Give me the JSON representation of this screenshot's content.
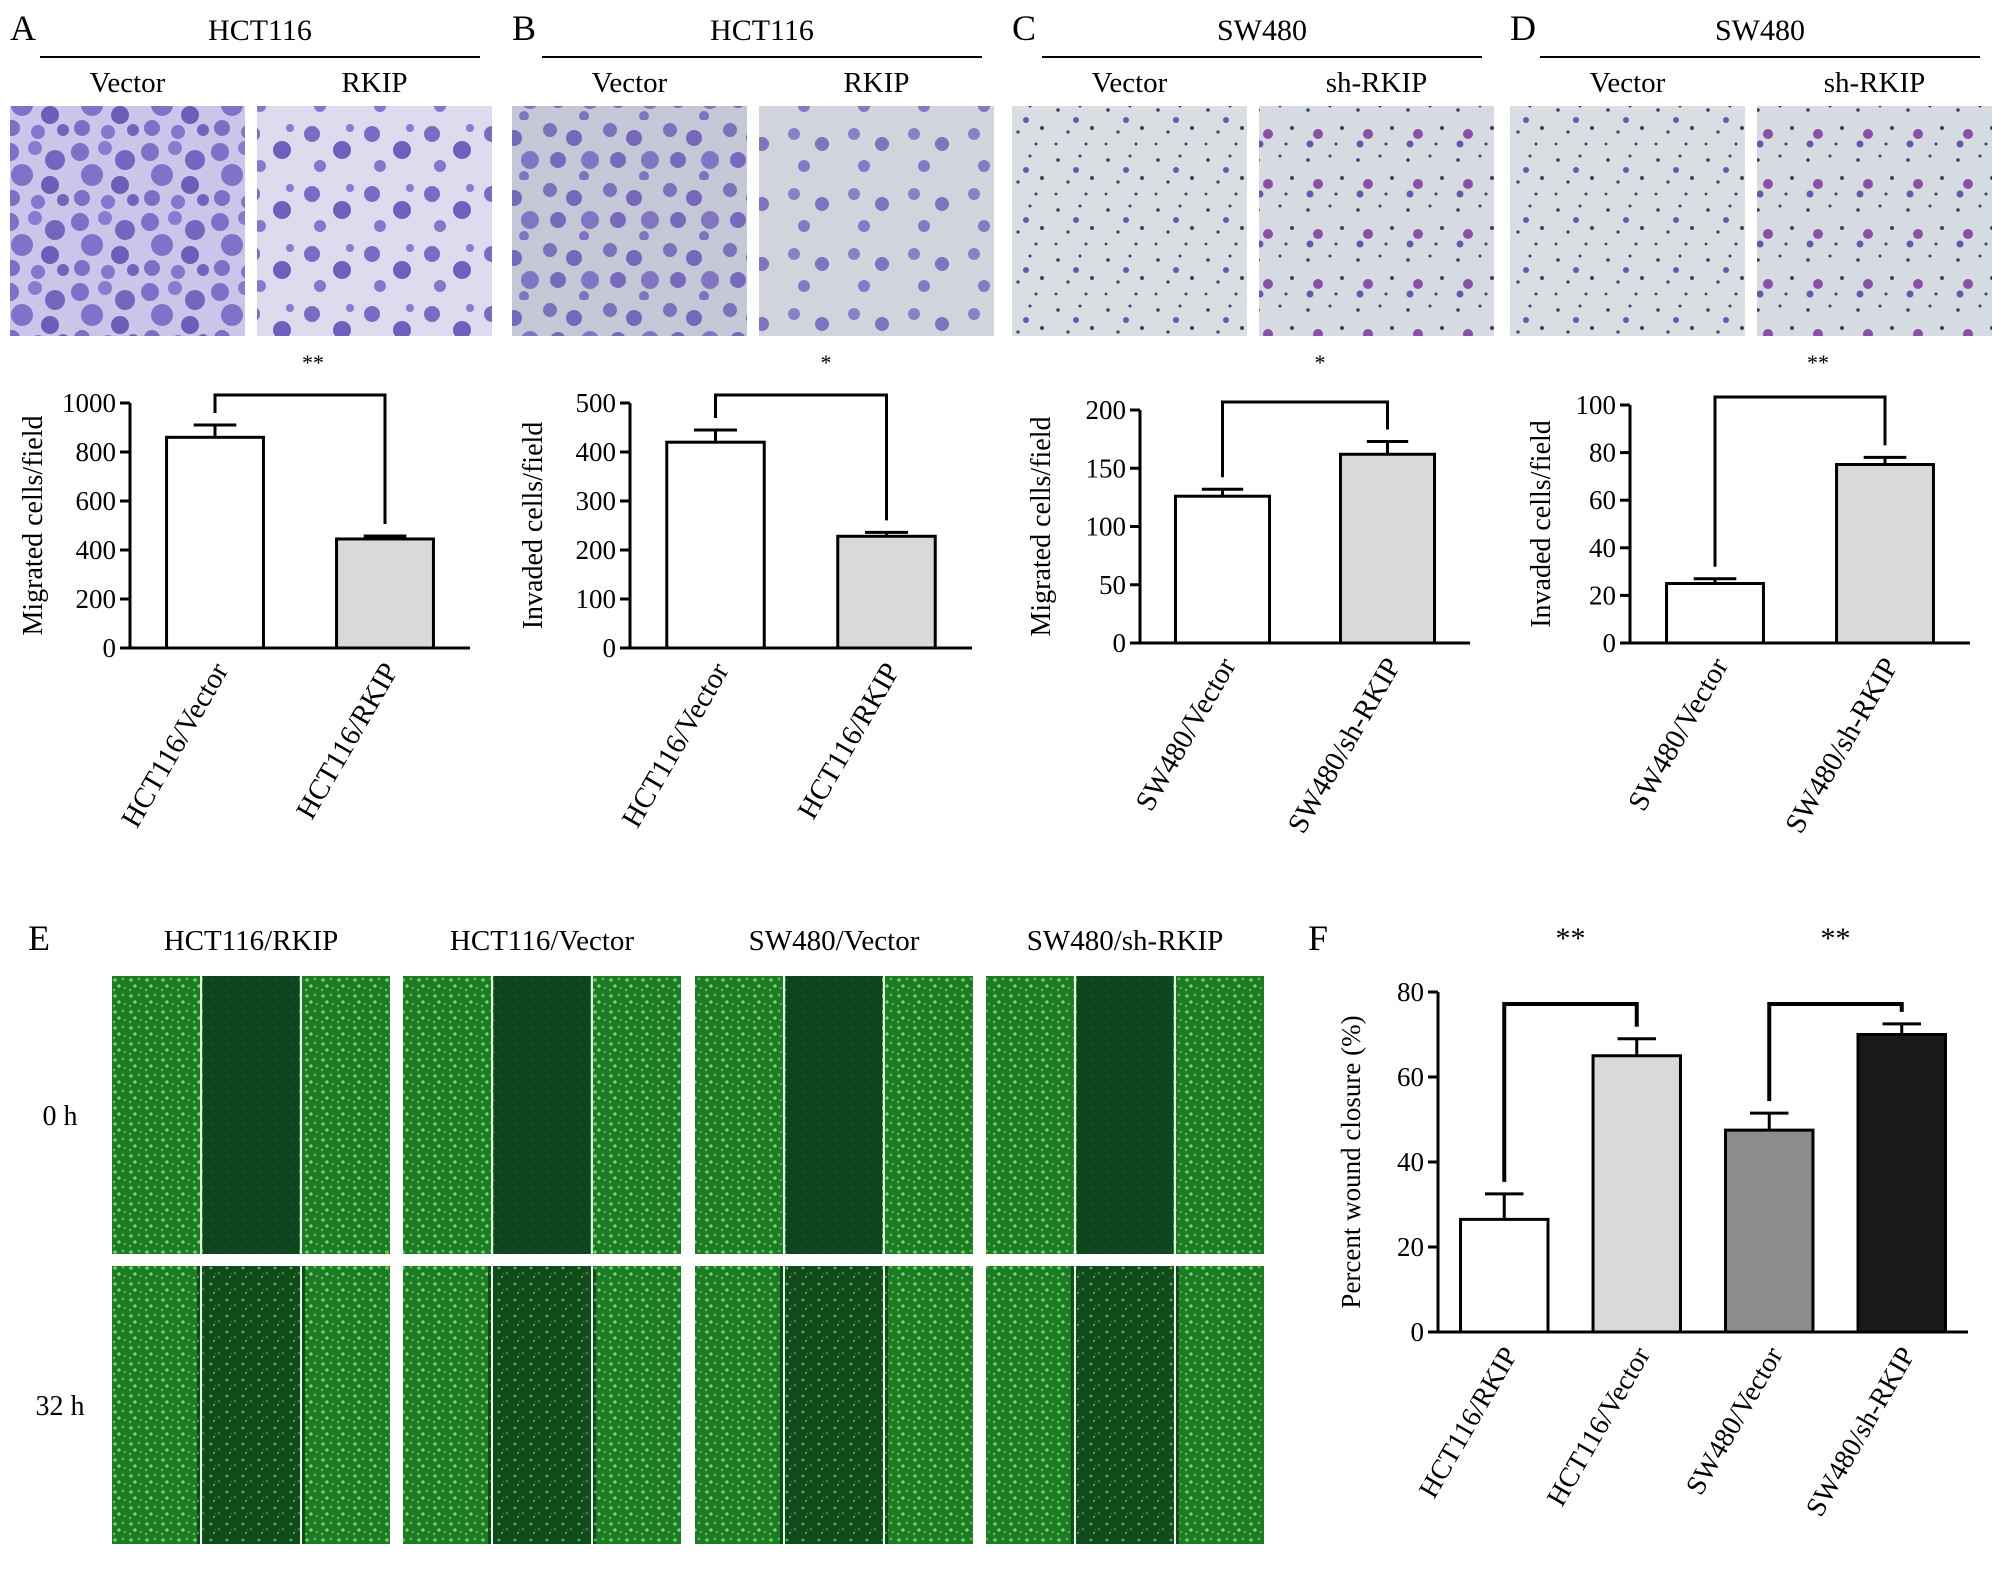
{
  "panels": [
    {
      "letter": "A",
      "cell_line": "HCT116",
      "image_labels": [
        "Vector",
        "RKIP"
      ],
      "significance": "**"
    },
    {
      "letter": "B",
      "cell_line": "HCT116",
      "image_labels": [
        "Vector",
        "RKIP"
      ],
      "significance": "*"
    },
    {
      "letter": "C",
      "cell_line": "SW480",
      "image_labels": [
        "Vector",
        "sh-RKIP"
      ],
      "significance": "*"
    },
    {
      "letter": "D",
      "cell_line": "SW480",
      "image_labels": [
        "Vector",
        "sh-RKIP"
      ],
      "significance": "**"
    }
  ],
  "panel_e": {
    "letter": "E",
    "column_labels": [
      "HCT116/RKIP",
      "HCT116/Vector",
      "SW480/Vector",
      "SW480/sh-RKIP"
    ],
    "row_labels": [
      "0 h",
      "32 h"
    ]
  },
  "panel_f": {
    "letter": "F"
  },
  "colors": {
    "bar_white": "#ffffff",
    "bar_lightgray": "#d9d9d9",
    "bar_midgray": "#8c8c8c",
    "bar_black": "#1a1a1a",
    "crystal_violet_bg": "#d7dde3",
    "crystal_violet_cells": "#6b5bb8",
    "gfp_green": "#2fa52f"
  },
  "chart_data": [
    {
      "panel": "A",
      "type": "bar",
      "categories": [
        "HCT116/Vector",
        "HCT116/RKIP"
      ],
      "values": [
        860,
        445
      ],
      "errors": [
        50,
        12
      ],
      "ylabel": "Migrated cells/field",
      "ylim": [
        0,
        1000
      ],
      "yticks": [
        0,
        200,
        400,
        600,
        800,
        1000
      ],
      "bar_colors": [
        "#ffffff",
        "#d9d9d9"
      ],
      "significance": "**"
    },
    {
      "panel": "B",
      "type": "bar",
      "categories": [
        "HCT116/Vector",
        "HCT116/RKIP"
      ],
      "values": [
        420,
        228
      ],
      "errors": [
        25,
        8
      ],
      "ylabel": "Invaded cells/field",
      "ylim": [
        0,
        500
      ],
      "yticks": [
        0,
        100,
        200,
        300,
        400,
        500
      ],
      "bar_colors": [
        "#ffffff",
        "#d9d9d9"
      ],
      "significance": "*"
    },
    {
      "panel": "C",
      "type": "bar",
      "categories": [
        "SW480/Vector",
        "SW480/sh-RKIP"
      ],
      "values": [
        126,
        162
      ],
      "errors": [
        6,
        11
      ],
      "ylabel": "Migrated cells/field",
      "ylim": [
        0,
        200
      ],
      "yticks": [
        0,
        50,
        100,
        150,
        200
      ],
      "bar_colors": [
        "#ffffff",
        "#d9d9d9"
      ],
      "significance": "*"
    },
    {
      "panel": "D",
      "type": "bar",
      "categories": [
        "SW480/Vector",
        "SW480/sh-RKIP"
      ],
      "values": [
        25,
        75
      ],
      "errors": [
        2,
        3
      ],
      "ylabel": "Invaded cells/field",
      "ylim": [
        0,
        100
      ],
      "yticks": [
        0,
        20,
        40,
        60,
        80,
        100
      ],
      "bar_colors": [
        "#ffffff",
        "#d9d9d9"
      ],
      "significance": "**"
    },
    {
      "panel": "F",
      "type": "bar",
      "categories": [
        "HCT116/RKIP",
        "HCT116/Vector",
        "SW480/Vector",
        "SW480/sh-RKIP"
      ],
      "values": [
        26.5,
        65,
        47.5,
        70
      ],
      "errors": [
        6,
        4,
        4,
        2.5
      ],
      "ylabel": "Percent wound closure (%)",
      "ylim": [
        0,
        80
      ],
      "yticks": [
        0,
        20,
        40,
        60,
        80
      ],
      "bar_colors": [
        "#ffffff",
        "#d9d9d9",
        "#8c8c8c",
        "#1a1a1a"
      ],
      "significance": [
        "**",
        "**"
      ]
    }
  ]
}
